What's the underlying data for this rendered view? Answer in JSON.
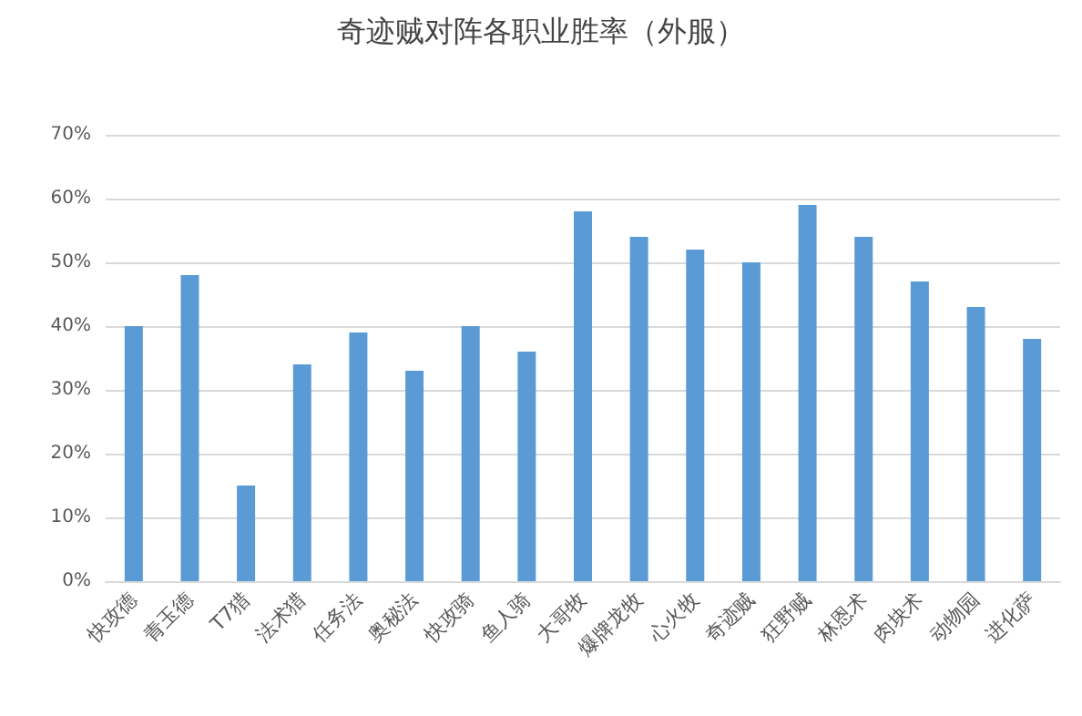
{
  "chart_data": {
    "type": "bar",
    "title": "奇迹贼对阵各职业胜率（外服）",
    "categories": [
      "快攻德",
      "青玉德",
      "T7猎",
      "法术猎",
      "任务法",
      "奥秘法",
      "快攻骑",
      "鱼人骑",
      "大哥牧",
      "爆牌龙牧",
      "心火牧",
      "奇迹贼",
      "狂野贼",
      "林恩术",
      "肉块术",
      "动物园",
      "进化萨"
    ],
    "values": [
      40,
      48,
      15,
      34,
      39,
      33,
      40,
      36,
      58,
      54,
      52,
      50,
      59,
      54,
      47,
      43,
      38
    ],
    "color": "#5b9bd5",
    "ylim": [
      0,
      70
    ],
    "yticks": [
      {
        "value": 0,
        "label": "0%"
      },
      {
        "value": 10,
        "label": "10%"
      },
      {
        "value": 20,
        "label": "20%"
      },
      {
        "value": 30,
        "label": "30%"
      },
      {
        "value": 40,
        "label": "40%"
      },
      {
        "value": 50,
        "label": "50%"
      },
      {
        "value": 60,
        "label": "60%"
      },
      {
        "value": 70,
        "label": "70%"
      }
    ],
    "grid": "y"
  }
}
